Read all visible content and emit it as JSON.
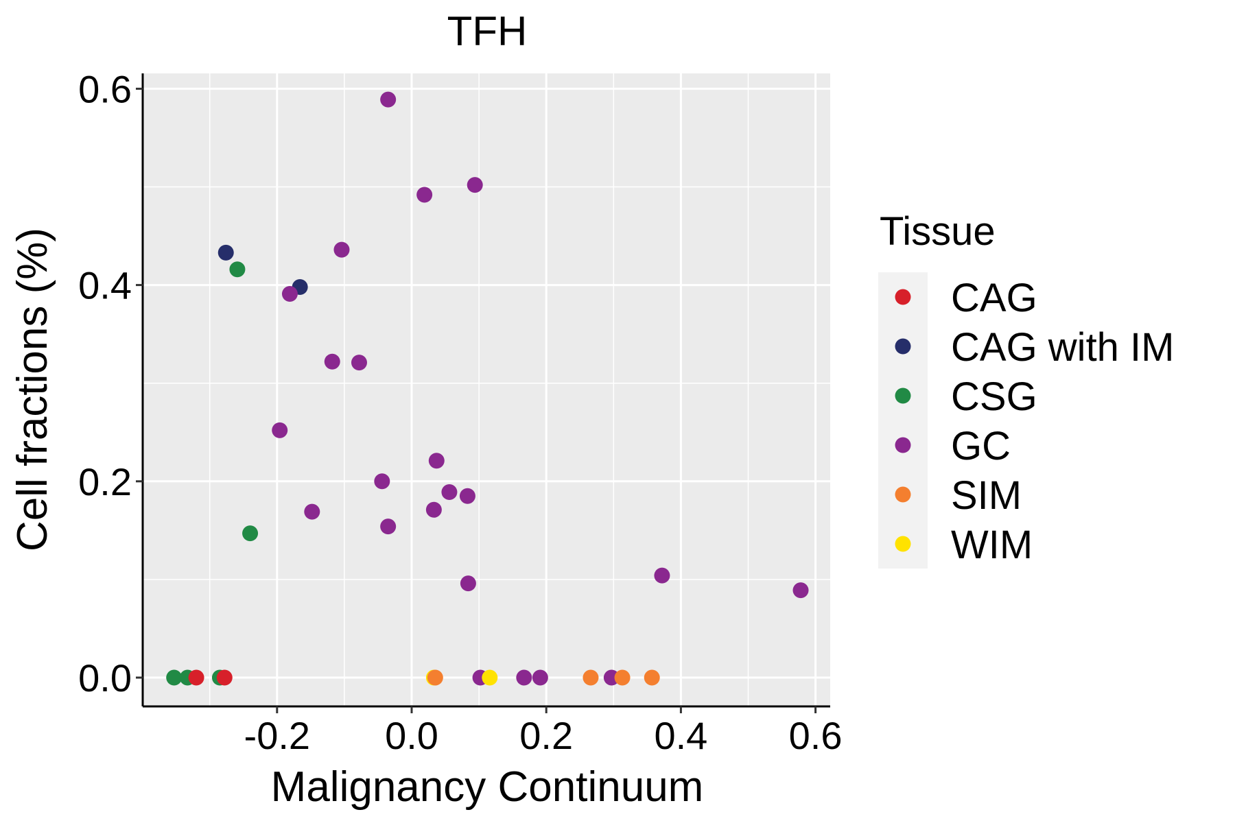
{
  "chart_data": {
    "type": "scatter",
    "title": "TFH",
    "xlabel": "Malignancy Continuum",
    "ylabel": "Cell fractions (%)",
    "xlim": [
      -0.39,
      0.61
    ],
    "ylim": [
      -0.03,
      0.63
    ],
    "xticks": [
      -0.2,
      0.0,
      0.2,
      0.4,
      0.6
    ],
    "xtick_labels": [
      "-0.2",
      "0.0",
      "0.2",
      "0.4",
      "0.6"
    ],
    "yticks": [
      0.0,
      0.2,
      0.4,
      0.6
    ],
    "ytick_labels": [
      "0.0",
      "0.2",
      "0.4",
      "0.6"
    ],
    "grid": true,
    "legend": {
      "title": "Tissue",
      "position": "right",
      "entries": [
        {
          "name": "CAG",
          "color": "#D7202A"
        },
        {
          "name": "CAG with IM",
          "color": "#262E6A"
        },
        {
          "name": "CSG",
          "color": "#218A45"
        },
        {
          "name": "GC",
          "color": "#8A288F"
        },
        {
          "name": "SIM",
          "color": "#F47F2F"
        },
        {
          "name": "WIM",
          "color": "#FFE200"
        }
      ]
    },
    "series": [
      {
        "name": "CSG",
        "color": "#218A45",
        "points": [
          [
            -0.353,
            0.0
          ],
          [
            -0.333,
            0.0
          ],
          [
            -0.285,
            0.0
          ],
          [
            -0.259,
            0.416
          ],
          [
            -0.24,
            0.147
          ]
        ]
      },
      {
        "name": "CAG",
        "color": "#D7202A",
        "points": [
          [
            -0.32,
            0.0
          ],
          [
            -0.278,
            0.0
          ]
        ]
      },
      {
        "name": "CAG with IM",
        "color": "#262E6A",
        "points": [
          [
            -0.276,
            0.433
          ],
          [
            -0.166,
            0.398
          ]
        ]
      },
      {
        "name": "WIM",
        "color": "#FFE200",
        "points": [
          [
            0.033,
            0.0
          ],
          [
            0.116,
            0.0
          ]
        ]
      },
      {
        "name": "GC",
        "color": "#8A288F",
        "points": [
          [
            -0.035,
            0.589
          ],
          [
            0.019,
            0.492
          ],
          [
            0.094,
            0.502
          ],
          [
            -0.104,
            0.436
          ],
          [
            -0.181,
            0.391
          ],
          [
            -0.118,
            0.322
          ],
          [
            -0.078,
            0.321
          ],
          [
            -0.196,
            0.252
          ],
          [
            0.037,
            0.221
          ],
          [
            -0.044,
            0.2
          ],
          [
            0.056,
            0.189
          ],
          [
            0.083,
            0.185
          ],
          [
            -0.148,
            0.169
          ],
          [
            0.033,
            0.171
          ],
          [
            -0.035,
            0.154
          ],
          [
            0.084,
            0.096
          ],
          [
            0.372,
            0.104
          ],
          [
            0.578,
            0.089
          ],
          [
            0.102,
            0.0
          ],
          [
            0.167,
            0.0
          ],
          [
            0.191,
            0.0
          ],
          [
            0.297,
            0.0
          ]
        ]
      },
      {
        "name": "SIM",
        "color": "#F47F2F",
        "points": [
          [
            0.035,
            0.0
          ],
          [
            0.266,
            0.0
          ],
          [
            0.313,
            0.0
          ],
          [
            0.357,
            0.0
          ]
        ]
      }
    ],
    "draw_order": [
      "CSG",
      "CAG",
      "CAG with IM",
      "GC",
      "WIM",
      "SIM"
    ]
  }
}
